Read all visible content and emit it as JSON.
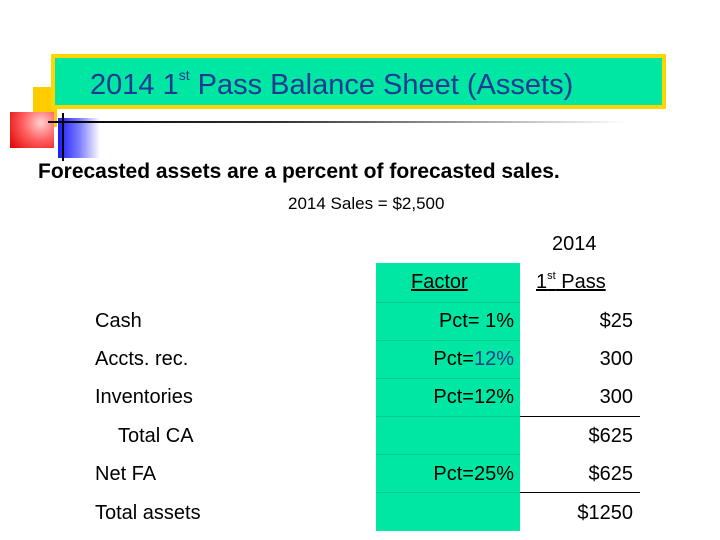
{
  "title": {
    "prefix": "2014 1",
    "sup": "st",
    "suffix": " Pass Balance Sheet (Assets)"
  },
  "subtitle": "Forecasted assets are a percent of forecasted sales.",
  "sales_note": "2014 Sales = $2,500",
  "header": {
    "year": "2014",
    "factor": "Factor",
    "pass_prefix": "1",
    "pass_sup": "st",
    "pass_suffix": " Pass"
  },
  "rows": [
    {
      "label": "Cash",
      "pct_prefix": "Pct= ",
      "pct_value": "1%",
      "amount": "$25"
    },
    {
      "label": "Accts. rec.",
      "pct_prefix": "Pct=",
      "pct_value": "12%",
      "amount": "300"
    },
    {
      "label": "Inventories",
      "pct_prefix": "Pct=",
      "pct_value": "12%",
      "amount": "300"
    },
    {
      "label": "Total CA",
      "pct_prefix": "",
      "pct_value": "",
      "amount": "$625"
    },
    {
      "label": "Net FA",
      "pct_prefix": "Pct=",
      "pct_value": "25%",
      "amount": "$625"
    },
    {
      "label": "Total assets",
      "pct_prefix": "",
      "pct_value": "",
      "amount": "$1250"
    }
  ],
  "colors": {
    "title_bg": "#00e6a3",
    "title_border": "#ffd700",
    "title_text": "#1f3a93",
    "factor_bg": "#00e6a3"
  }
}
